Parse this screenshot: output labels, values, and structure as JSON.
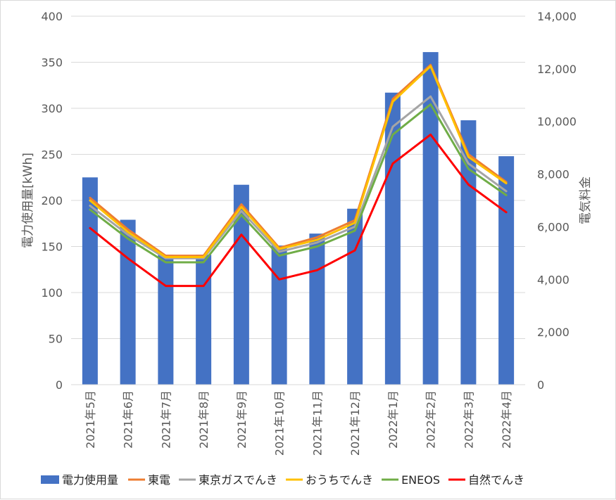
{
  "chart_data": {
    "type": "bar",
    "title": "",
    "categories": [
      "2021年5月",
      "2021年6月",
      "2021年7月",
      "2021年8月",
      "2021年9月",
      "2021年10月",
      "2021年11月",
      "2021年12月",
      "2022年1月",
      "2022年2月",
      "2022年3月",
      "2022年4月"
    ],
    "bar_series": {
      "name": "電力使用量",
      "axis": "left",
      "color": "#4472c4",
      "values": [
        225,
        179,
        141,
        141,
        217,
        151,
        164,
        191,
        317,
        361,
        287,
        248
      ]
    },
    "line_series": [
      {
        "name": "東電",
        "axis": "right",
        "color": "#ed7d31",
        "values": [
          7100,
          5900,
          4900,
          4900,
          6850,
          5200,
          5600,
          6250,
          10850,
          12150,
          8750,
          7700
        ]
      },
      {
        "name": "東京ガスでんき",
        "axis": "right",
        "color": "#a5a5a5",
        "values": [
          6800,
          5700,
          4800,
          4800,
          6600,
          5050,
          5400,
          6000,
          9800,
          10950,
          8400,
          7350
        ]
      },
      {
        "name": "おうちでんき",
        "axis": "right",
        "color": "#ffc000",
        "values": [
          7000,
          5800,
          4850,
          4850,
          6750,
          5150,
          5500,
          6150,
          10750,
          12100,
          8650,
          7650
        ]
      },
      {
        "name": "ENEOS",
        "axis": "right",
        "color": "#70ad47",
        "values": [
          6650,
          5550,
          4650,
          4650,
          6450,
          4900,
          5250,
          5850,
          9500,
          10650,
          8200,
          7200
        ]
      },
      {
        "name": "自然でんき",
        "axis": "right",
        "color": "#ff0000",
        "values": [
          5950,
          4800,
          3750,
          3750,
          5700,
          4000,
          4350,
          5100,
          8400,
          9500,
          7600,
          6550
        ]
      }
    ],
    "ylabel": "電力使用量[kWh]",
    "y2label": "電気料金",
    "ylim": [
      0,
      400
    ],
    "y2lim": [
      0,
      14000
    ],
    "yticks": [
      "0",
      "50",
      "100",
      "150",
      "200",
      "250",
      "300",
      "350",
      "400"
    ],
    "y2ticks": [
      "0",
      "2,000",
      "4,000",
      "6,000",
      "8,000",
      "10,000",
      "12,000",
      "14,000"
    ],
    "grid": true,
    "legend_position": "bottom"
  }
}
